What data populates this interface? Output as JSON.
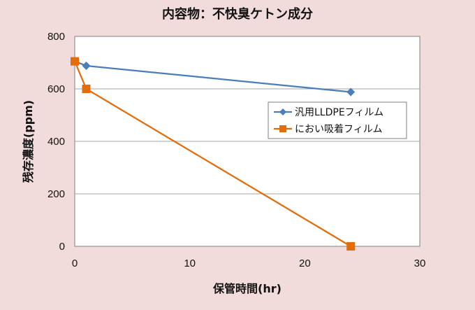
{
  "chart_data": {
    "type": "line",
    "title": "内容物：不快臭ケトン成分",
    "xlabel": "保管時間(hr)",
    "ylabel": "残存濃度(ppm)",
    "xlim": [
      0,
      30
    ],
    "ylim": [
      0,
      800
    ],
    "x_ticks": [
      "0",
      "10",
      "20",
      "30"
    ],
    "y_ticks": [
      "0",
      "200",
      "400",
      "600",
      "800"
    ],
    "grid": "horizontal",
    "legend_position": "right",
    "series": [
      {
        "name": "汎用LLDPEフィルム",
        "color": "#4a7ebb",
        "marker": "diamond",
        "points": [
          {
            "x": 0,
            "y": 705
          },
          {
            "x": 1,
            "y": 688
          },
          {
            "x": 24,
            "y": 588
          }
        ]
      },
      {
        "name": "におい吸着フィルム",
        "color": "#e46c0a",
        "marker": "square",
        "points": [
          {
            "x": 0,
            "y": 705
          },
          {
            "x": 1,
            "y": 600
          },
          {
            "x": 24,
            "y": 0
          }
        ]
      }
    ]
  }
}
